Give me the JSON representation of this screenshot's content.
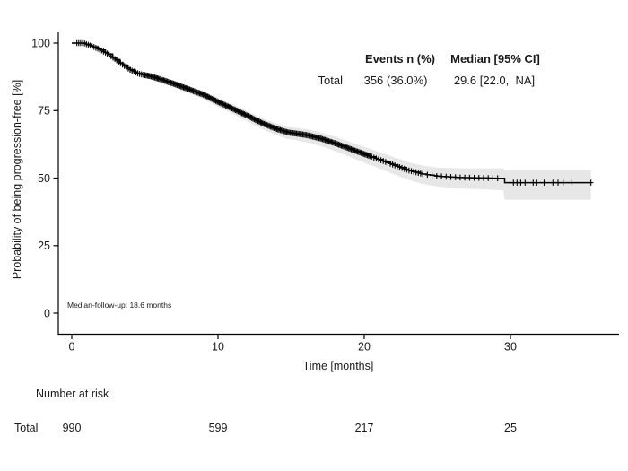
{
  "chart_data": {
    "type": "line",
    "subtype": "kaplan-meier-step",
    "title": "",
    "xlabel": "Time [months]",
    "ylabel": "Probability of being progression-free [%]",
    "xlim": [
      0,
      37.5
    ],
    "ylim": [
      0,
      100
    ],
    "xticks": [
      0,
      10,
      20,
      30
    ],
    "yticks": [
      0,
      25,
      50,
      75,
      100
    ],
    "grid": false,
    "legend": "none",
    "curve_color": "#000000",
    "ci_band_color": "rgba(0,0,0,0.095)",
    "series": [
      {
        "name": "Total",
        "points": [
          [
            0,
            100
          ],
          [
            0.8,
            100
          ],
          [
            1.5,
            98.6
          ],
          [
            2,
            97.4
          ],
          [
            2.5,
            95.9
          ],
          [
            3,
            93.9
          ],
          [
            3.5,
            91.9
          ],
          [
            4,
            90.1
          ],
          [
            4.6,
            88.6
          ],
          [
            5.4,
            87.7
          ],
          [
            6,
            86.7
          ],
          [
            7,
            84.9
          ],
          [
            8,
            82.9
          ],
          [
            9,
            80.9
          ],
          [
            10,
            78.2
          ],
          [
            11,
            75.7
          ],
          [
            12,
            73.1
          ],
          [
            13,
            70.4
          ],
          [
            14,
            68.2
          ],
          [
            14.8,
            66.9
          ],
          [
            16,
            66
          ],
          [
            17,
            64.7
          ],
          [
            18,
            62.9
          ],
          [
            19,
            60.9
          ],
          [
            20,
            58.9
          ],
          [
            21,
            56.9
          ],
          [
            22,
            54.9
          ],
          [
            23,
            52.9
          ],
          [
            24,
            51.5
          ],
          [
            25,
            50.7
          ],
          [
            26.5,
            50.2
          ],
          [
            29.5,
            49.9
          ],
          [
            29.6,
            48.3
          ],
          [
            35.5,
            48.3
          ]
        ]
      }
    ],
    "censor_dense_ranges": [
      [
        0.35,
        5,
        0.13
      ],
      [
        5,
        20.5,
        0.085
      ],
      [
        20.5,
        24,
        0.16
      ],
      [
        24,
        29.4,
        0.32
      ]
    ],
    "censor_late_marks": [
      30.2,
      30.45,
      30.7,
      31.0,
      31.55,
      31.8,
      32.3,
      32.9,
      33.25,
      33.6,
      34.15,
      35.5
    ]
  },
  "annotation_table": {
    "events_header": "Events n (%)",
    "median_header": "Median [95% CI]",
    "rows": [
      {
        "label": "Total",
        "events": "356 (36.0%)",
        "median": "29.6 [22.0,  NA]"
      }
    ]
  },
  "followup_note": "Median-follow-up: 18.6 months",
  "risk_table": {
    "title": "Number at risk",
    "rows": [
      {
        "label": "Total",
        "values": [
          "990",
          "599",
          "217",
          "25"
        ]
      }
    ]
  }
}
